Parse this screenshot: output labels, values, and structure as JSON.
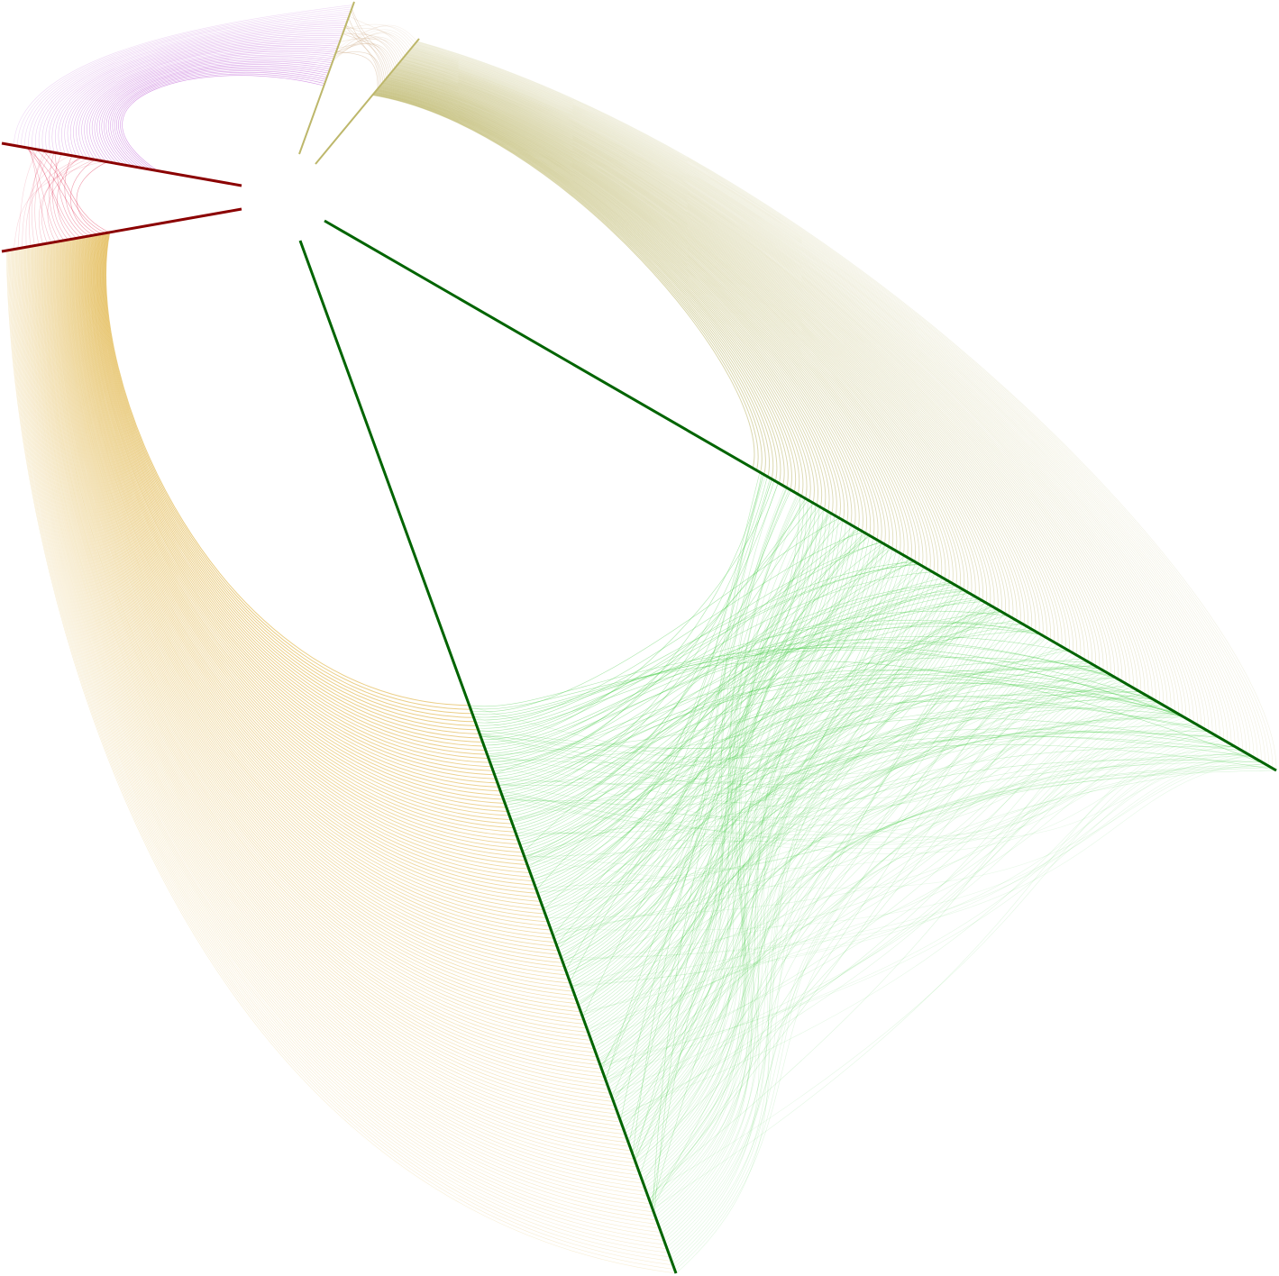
{
  "diagram": {
    "type": "hive-plot",
    "axes": [
      {
        "id": "dark-green-axis",
        "color": "#006400"
      },
      {
        "id": "dark-red-axis-upper",
        "color": "#8b0000"
      },
      {
        "id": "dark-red-axis-lower",
        "color": "#8b0000"
      },
      {
        "id": "khaki-axis-left",
        "color": "#bdb76b"
      },
      {
        "id": "khaki-axis-right",
        "color": "#bdb76b"
      },
      {
        "id": "green-axis-long",
        "color": "#006400"
      }
    ],
    "edge_groups": [
      {
        "name": "olive-bundle",
        "color": "#bdb76b"
      },
      {
        "name": "goldenrod-bundle",
        "color": "#daa520"
      },
      {
        "name": "light-green-bundle",
        "color": "#44cc44"
      },
      {
        "name": "orchid-bundle",
        "color": "#ba55d3"
      },
      {
        "name": "crimson-bundle",
        "color": "#dc143c"
      },
      {
        "name": "tan-bundle",
        "color": "#c9a27a"
      }
    ]
  }
}
